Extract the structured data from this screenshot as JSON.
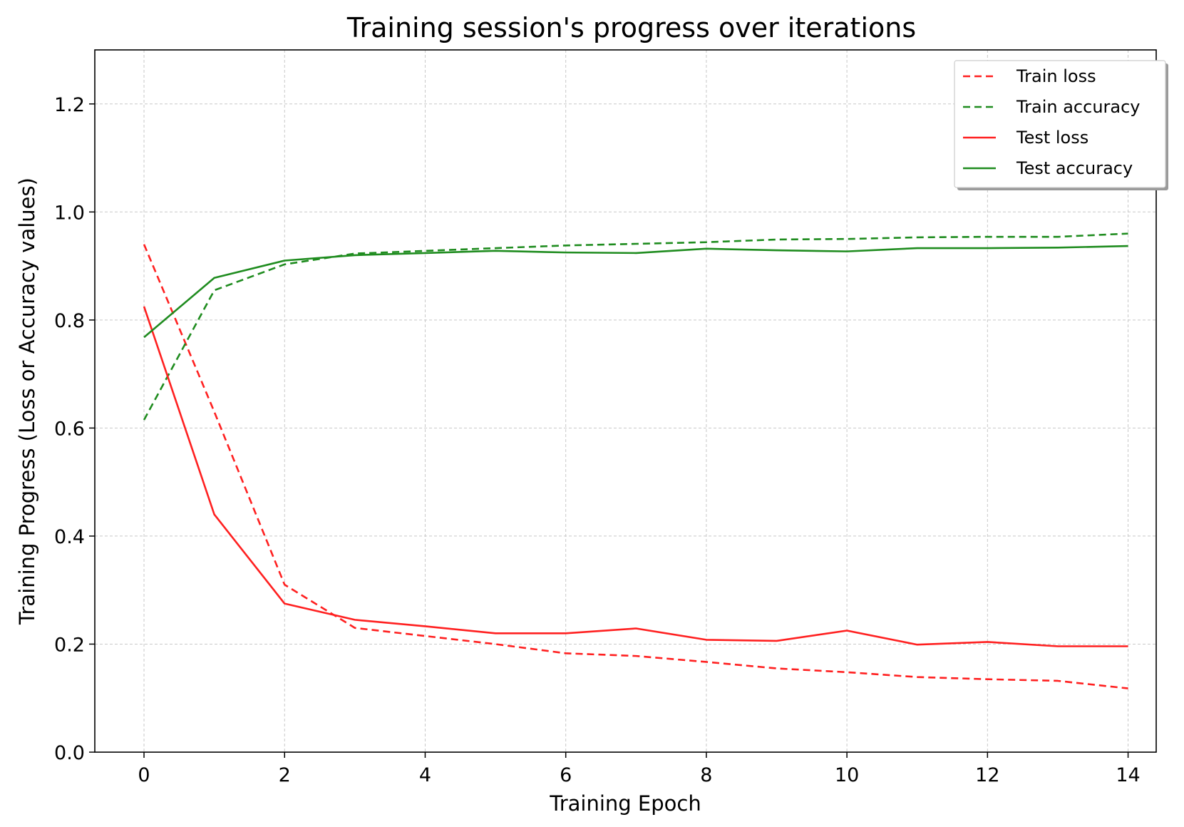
{
  "chart_data": {
    "type": "line",
    "title": "Training session's progress over iterations",
    "xlabel": "Training Epoch",
    "ylabel": "Training Progress (Loss or Accuracy values)",
    "xlim": [
      -0.7,
      14.4
    ],
    "ylim": [
      0.0,
      1.3
    ],
    "xticks": [
      0,
      2,
      4,
      6,
      8,
      10,
      12,
      14
    ],
    "yticks": [
      0.0,
      0.2,
      0.4,
      0.6,
      0.8,
      1.0,
      1.2
    ],
    "grid": true,
    "legend_position": "top-right",
    "x": [
      0,
      1,
      2,
      3,
      4,
      5,
      6,
      7,
      8,
      9,
      10,
      11,
      12,
      13,
      14
    ],
    "series": [
      {
        "name": "Train loss",
        "color": "#ff2020",
        "style": "dashed",
        "values": [
          0.94,
          0.63,
          0.31,
          0.23,
          0.215,
          0.2,
          0.183,
          0.178,
          0.167,
          0.155,
          0.148,
          0.139,
          0.135,
          0.132,
          0.118
        ]
      },
      {
        "name": "Train accuracy",
        "color": "#1f8c1f",
        "style": "dashed",
        "values": [
          0.615,
          0.855,
          0.903,
          0.923,
          0.928,
          0.933,
          0.938,
          0.941,
          0.944,
          0.949,
          0.95,
          0.953,
          0.954,
          0.954,
          0.96
        ]
      },
      {
        "name": "Test loss",
        "color": "#ff2020",
        "style": "solid",
        "values": [
          0.825,
          0.44,
          0.275,
          0.245,
          0.233,
          0.22,
          0.22,
          0.229,
          0.208,
          0.206,
          0.225,
          0.199,
          0.204,
          0.196,
          0.196
        ]
      },
      {
        "name": "Test accuracy",
        "color": "#1f8c1f",
        "style": "solid",
        "values": [
          0.768,
          0.878,
          0.91,
          0.92,
          0.924,
          0.928,
          0.925,
          0.924,
          0.932,
          0.929,
          0.927,
          0.933,
          0.933,
          0.934,
          0.937
        ]
      }
    ]
  }
}
